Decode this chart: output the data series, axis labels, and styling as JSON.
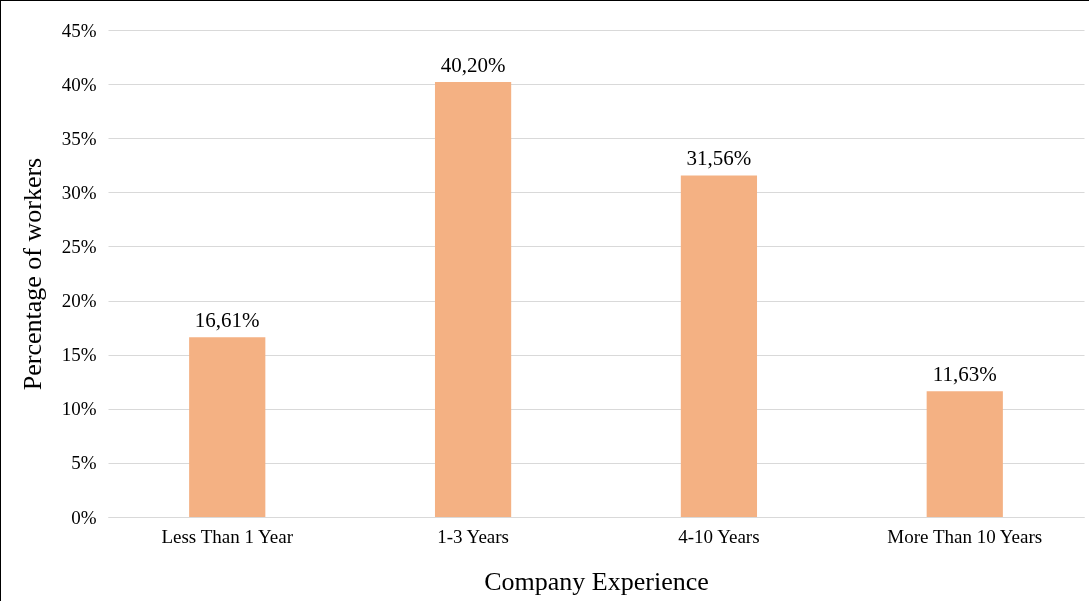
{
  "chart_data": {
    "type": "bar",
    "xlabel": "Company Experience",
    "ylabel": "Percentage of workers",
    "categories": [
      "Less Than 1 Year",
      "1-3 Years",
      "4-10 Years",
      "More Than 10 Years"
    ],
    "values": [
      16.61,
      40.2,
      31.56,
      11.63
    ],
    "value_labels": [
      "16,61%",
      "40,20%",
      "31,56%",
      "11,63%"
    ],
    "color": "#f4b183",
    "ylim": [
      0,
      45
    ],
    "yticks": [
      {
        "value": 0,
        "label": "0%"
      },
      {
        "value": 5,
        "label": "5%"
      },
      {
        "value": 10,
        "label": "10%"
      },
      {
        "value": 15,
        "label": "15%"
      },
      {
        "value": 20,
        "label": "20%"
      },
      {
        "value": 25,
        "label": "25%"
      },
      {
        "value": 30,
        "label": "30%"
      },
      {
        "value": 35,
        "label": "35%"
      },
      {
        "value": 40,
        "label": "40%"
      },
      {
        "value": 45,
        "label": "45%"
      }
    ],
    "grid": true
  }
}
